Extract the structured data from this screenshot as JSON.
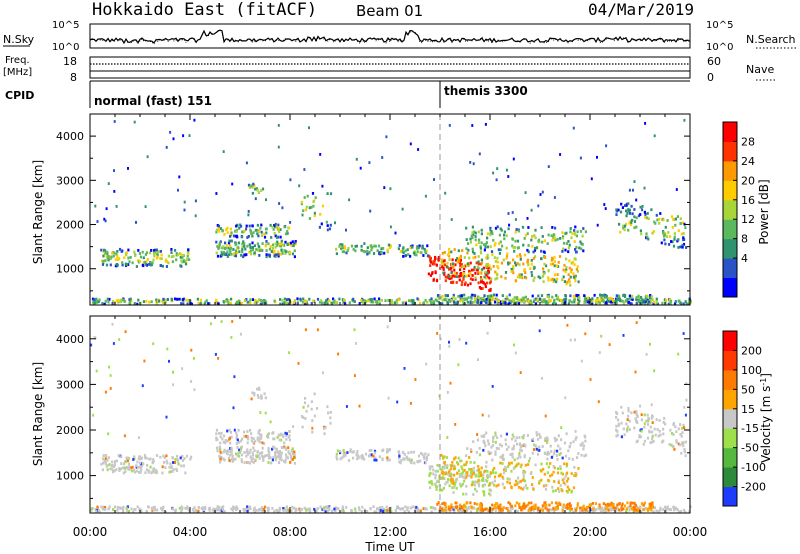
{
  "header": {
    "title": "Hokkaido East (fitACF)",
    "beam": "Beam 01",
    "date": "04/Mar/2019"
  },
  "chart_data": [
    {
      "type": "line",
      "panel": "noise",
      "left_label": "N.Sky",
      "right_label": "N.Search",
      "left_ticks": [
        "10^5",
        "10^0"
      ],
      "right_ticks": [
        "10^5",
        "10^0"
      ]
    },
    {
      "type": "line",
      "panel": "frequency",
      "left_label_1": "Freq.",
      "left_label_2": "[MHz]",
      "right_label": "Nave",
      "left_ticks": [
        "18",
        "8"
      ],
      "right_ticks": [
        "60",
        "0"
      ]
    },
    {
      "type": "table",
      "panel": "cpid",
      "label": "CPID",
      "segments": [
        {
          "name": "normal (fast) 151",
          "start_hour": 0,
          "end_hour": 14
        },
        {
          "name": "themis 3300",
          "start_hour": 14,
          "end_hour": 24
        }
      ]
    },
    {
      "type": "heatmap",
      "panel": "power",
      "ylabel": "Slant Range [km]",
      "ylim": [
        180,
        4500
      ],
      "yticks": [
        1000,
        2000,
        3000,
        4000
      ],
      "colorbar_label": "Power [dB]",
      "colorbar_ticks": [
        "28",
        "24",
        "20",
        "16",
        "12",
        "8",
        "4"
      ],
      "colors": [
        "#0000ff",
        "#2a53c8",
        "#2f9370",
        "#5cb85c",
        "#a8d63a",
        "#ffcc00",
        "#ff9900",
        "#ff3300",
        "#ff0000"
      ]
    },
    {
      "type": "heatmap",
      "panel": "velocity",
      "ylabel": "Slant Range [km]",
      "ylim": [
        180,
        4500
      ],
      "yticks": [
        1000,
        2000,
        3000,
        4000
      ],
      "colorbar_label": "Velocity [m s",
      "colorbar_label_sup": "-1",
      "colorbar_label_end": "]",
      "colorbar_ticks": [
        "200",
        "100",
        "50",
        "15",
        "-15",
        "-50",
        "-100",
        "-200"
      ],
      "colors": [
        "#1e3cff",
        "#2d8a3a",
        "#55b940",
        "#9ee04a",
        "#c8c8c8",
        "#ffa500",
        "#ff7a00",
        "#ff3a00",
        "#ff0000"
      ]
    }
  ],
  "xaxis": {
    "xlabel": "Time UT",
    "ticks": [
      "00:00",
      "04:00",
      "08:00",
      "12:00",
      "16:00",
      "20:00",
      "00:00"
    ],
    "xlim": [
      0,
      24
    ]
  }
}
